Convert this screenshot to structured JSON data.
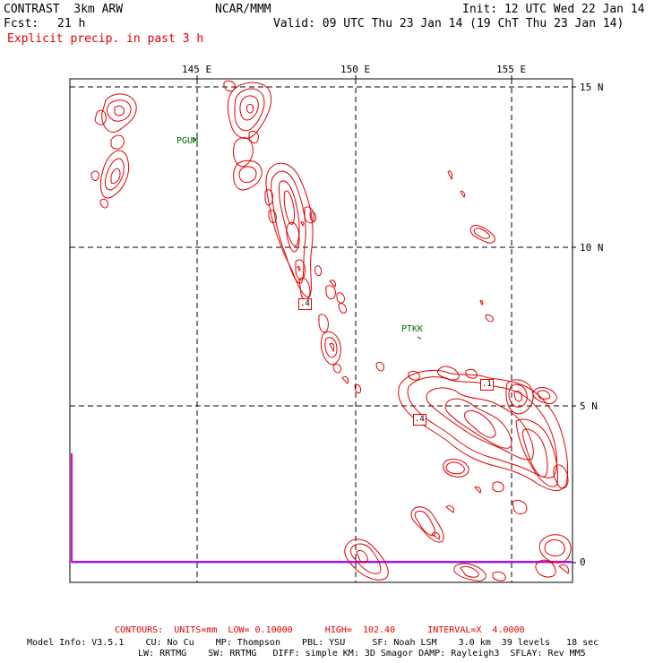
{
  "header": {
    "model": "CONTRAST  3km ARW",
    "fcst_label": "Fcst:",
    "fcst_value": "21 h",
    "org": "NCAR/MMM",
    "init": "Init: 12 UTC Wed 22 Jan 14",
    "valid": "Valid: 09 UTC Thu 23 Jan 14 (19 ChT Thu 23 Jan 14)",
    "field": "Explicit precip. in past 3 h"
  },
  "axes": {
    "lon_labels": [
      "145 E",
      "150 E",
      "155 E"
    ],
    "lat_labels": [
      "15 N",
      "10 N",
      "5 N",
      "0"
    ]
  },
  "stations": [
    "PGUM",
    "PTKK"
  ],
  "contour_labels": [
    ".4",
    ".1",
    ".4"
  ],
  "footer": {
    "contours": "CONTOURS:  UNITS=mm  LOW= 0.10000      HIGH=  102.40      INTERVAL=X  4.0000",
    "model_info_1": "Model Info: V3.5.1    CU: No Cu    MP: Thompson    PBL: YSU     SF: Noah LSM    3.0 km  39 levels   18 sec",
    "model_info_2": "LW: RRTMG    SW: RRTMG   DIFF: simple KM: 3D Smagor DAMP: Rayleigh3  SFLAY: Rev MM5"
  },
  "colors": {
    "contour": "#e00000",
    "grid": "#000000",
    "station": "#007000",
    "boundary": "#e000e0",
    "low_line": "#4040ff"
  }
}
